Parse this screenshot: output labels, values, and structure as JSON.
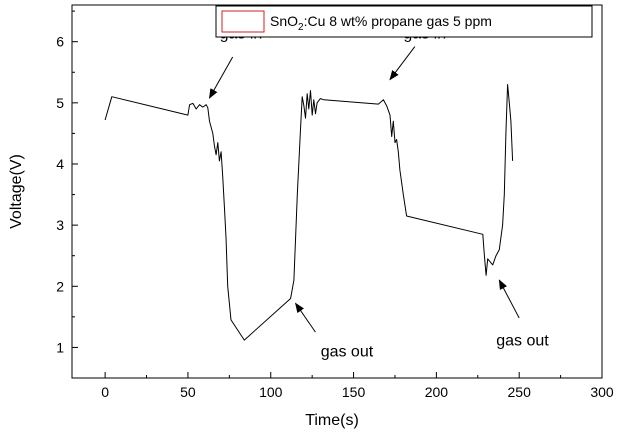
{
  "chart_data": {
    "type": "line",
    "title": "",
    "xlabel": "Time(s)",
    "ylabel": "Voltage(V)",
    "xlim": [
      -20,
      300
    ],
    "ylim": [
      0.5,
      6.6
    ],
    "xticks": [
      0,
      50,
      100,
      150,
      200,
      250,
      300
    ],
    "yticks": [
      1,
      2,
      3,
      4,
      5,
      6
    ],
    "grid": false,
    "legend_position": "top-right",
    "legend": {
      "prefix": "SnO",
      "subscript": "2",
      "suffix": ":Cu 8 wt% propane gas 5 ppm",
      "color": "#cc2222"
    },
    "series": [
      {
        "line_color": "#000000",
        "x": [
          0,
          4,
          50,
          51,
          53,
          55,
          57,
          59,
          61,
          62,
          63,
          65,
          66,
          67,
          68,
          69,
          70,
          71,
          72,
          73,
          74,
          76,
          84,
          112,
          114,
          116,
          118,
          119,
          120,
          121,
          122,
          123,
          124,
          125,
          126,
          127,
          128,
          130,
          132,
          165,
          168,
          170,
          172,
          173,
          174,
          175,
          176,
          177,
          178,
          180,
          182,
          228,
          229,
          230,
          231,
          234,
          236,
          237,
          238,
          240,
          241,
          242,
          243,
          244,
          245,
          246
        ],
        "y": [
          4.72,
          5.1,
          4.8,
          4.97,
          4.99,
          4.9,
          4.97,
          4.93,
          4.97,
          4.92,
          4.7,
          4.5,
          4.3,
          4.15,
          4.35,
          4.05,
          4.2,
          3.8,
          3.3,
          2.8,
          2.0,
          1.45,
          1.12,
          1.8,
          2.1,
          3.5,
          4.6,
          5.1,
          4.95,
          4.75,
          5.15,
          4.9,
          5.2,
          4.8,
          5.05,
          4.82,
          5.0,
          5.07,
          5.05,
          4.98,
          5.05,
          4.95,
          4.8,
          4.45,
          4.7,
          4.35,
          4.4,
          4.2,
          3.9,
          3.5,
          3.15,
          2.85,
          2.5,
          2.18,
          2.45,
          2.35,
          2.5,
          2.55,
          2.6,
          3.0,
          3.5,
          4.5,
          5.3,
          5.0,
          4.7,
          4.05
        ]
      }
    ],
    "annotations": [
      {
        "text": "gas in",
        "x": 82,
        "y": 6.05,
        "arrow_from": [
          77,
          5.75
        ],
        "arrow_to": [
          63,
          5.08
        ]
      },
      {
        "text": "gas in",
        "x": 193,
        "y": 6.05,
        "arrow_from": [
          187,
          5.92
        ],
        "arrow_to": [
          172,
          5.38
        ]
      },
      {
        "text": "gas out",
        "x": 146,
        "y": 0.85,
        "arrow_from": [
          127,
          1.25
        ],
        "arrow_to": [
          115,
          1.72
        ]
      },
      {
        "text": "gas out",
        "x": 252,
        "y": 1.03,
        "arrow_from": [
          250,
          1.48
        ],
        "arrow_to": [
          238,
          2.1
        ]
      }
    ]
  }
}
